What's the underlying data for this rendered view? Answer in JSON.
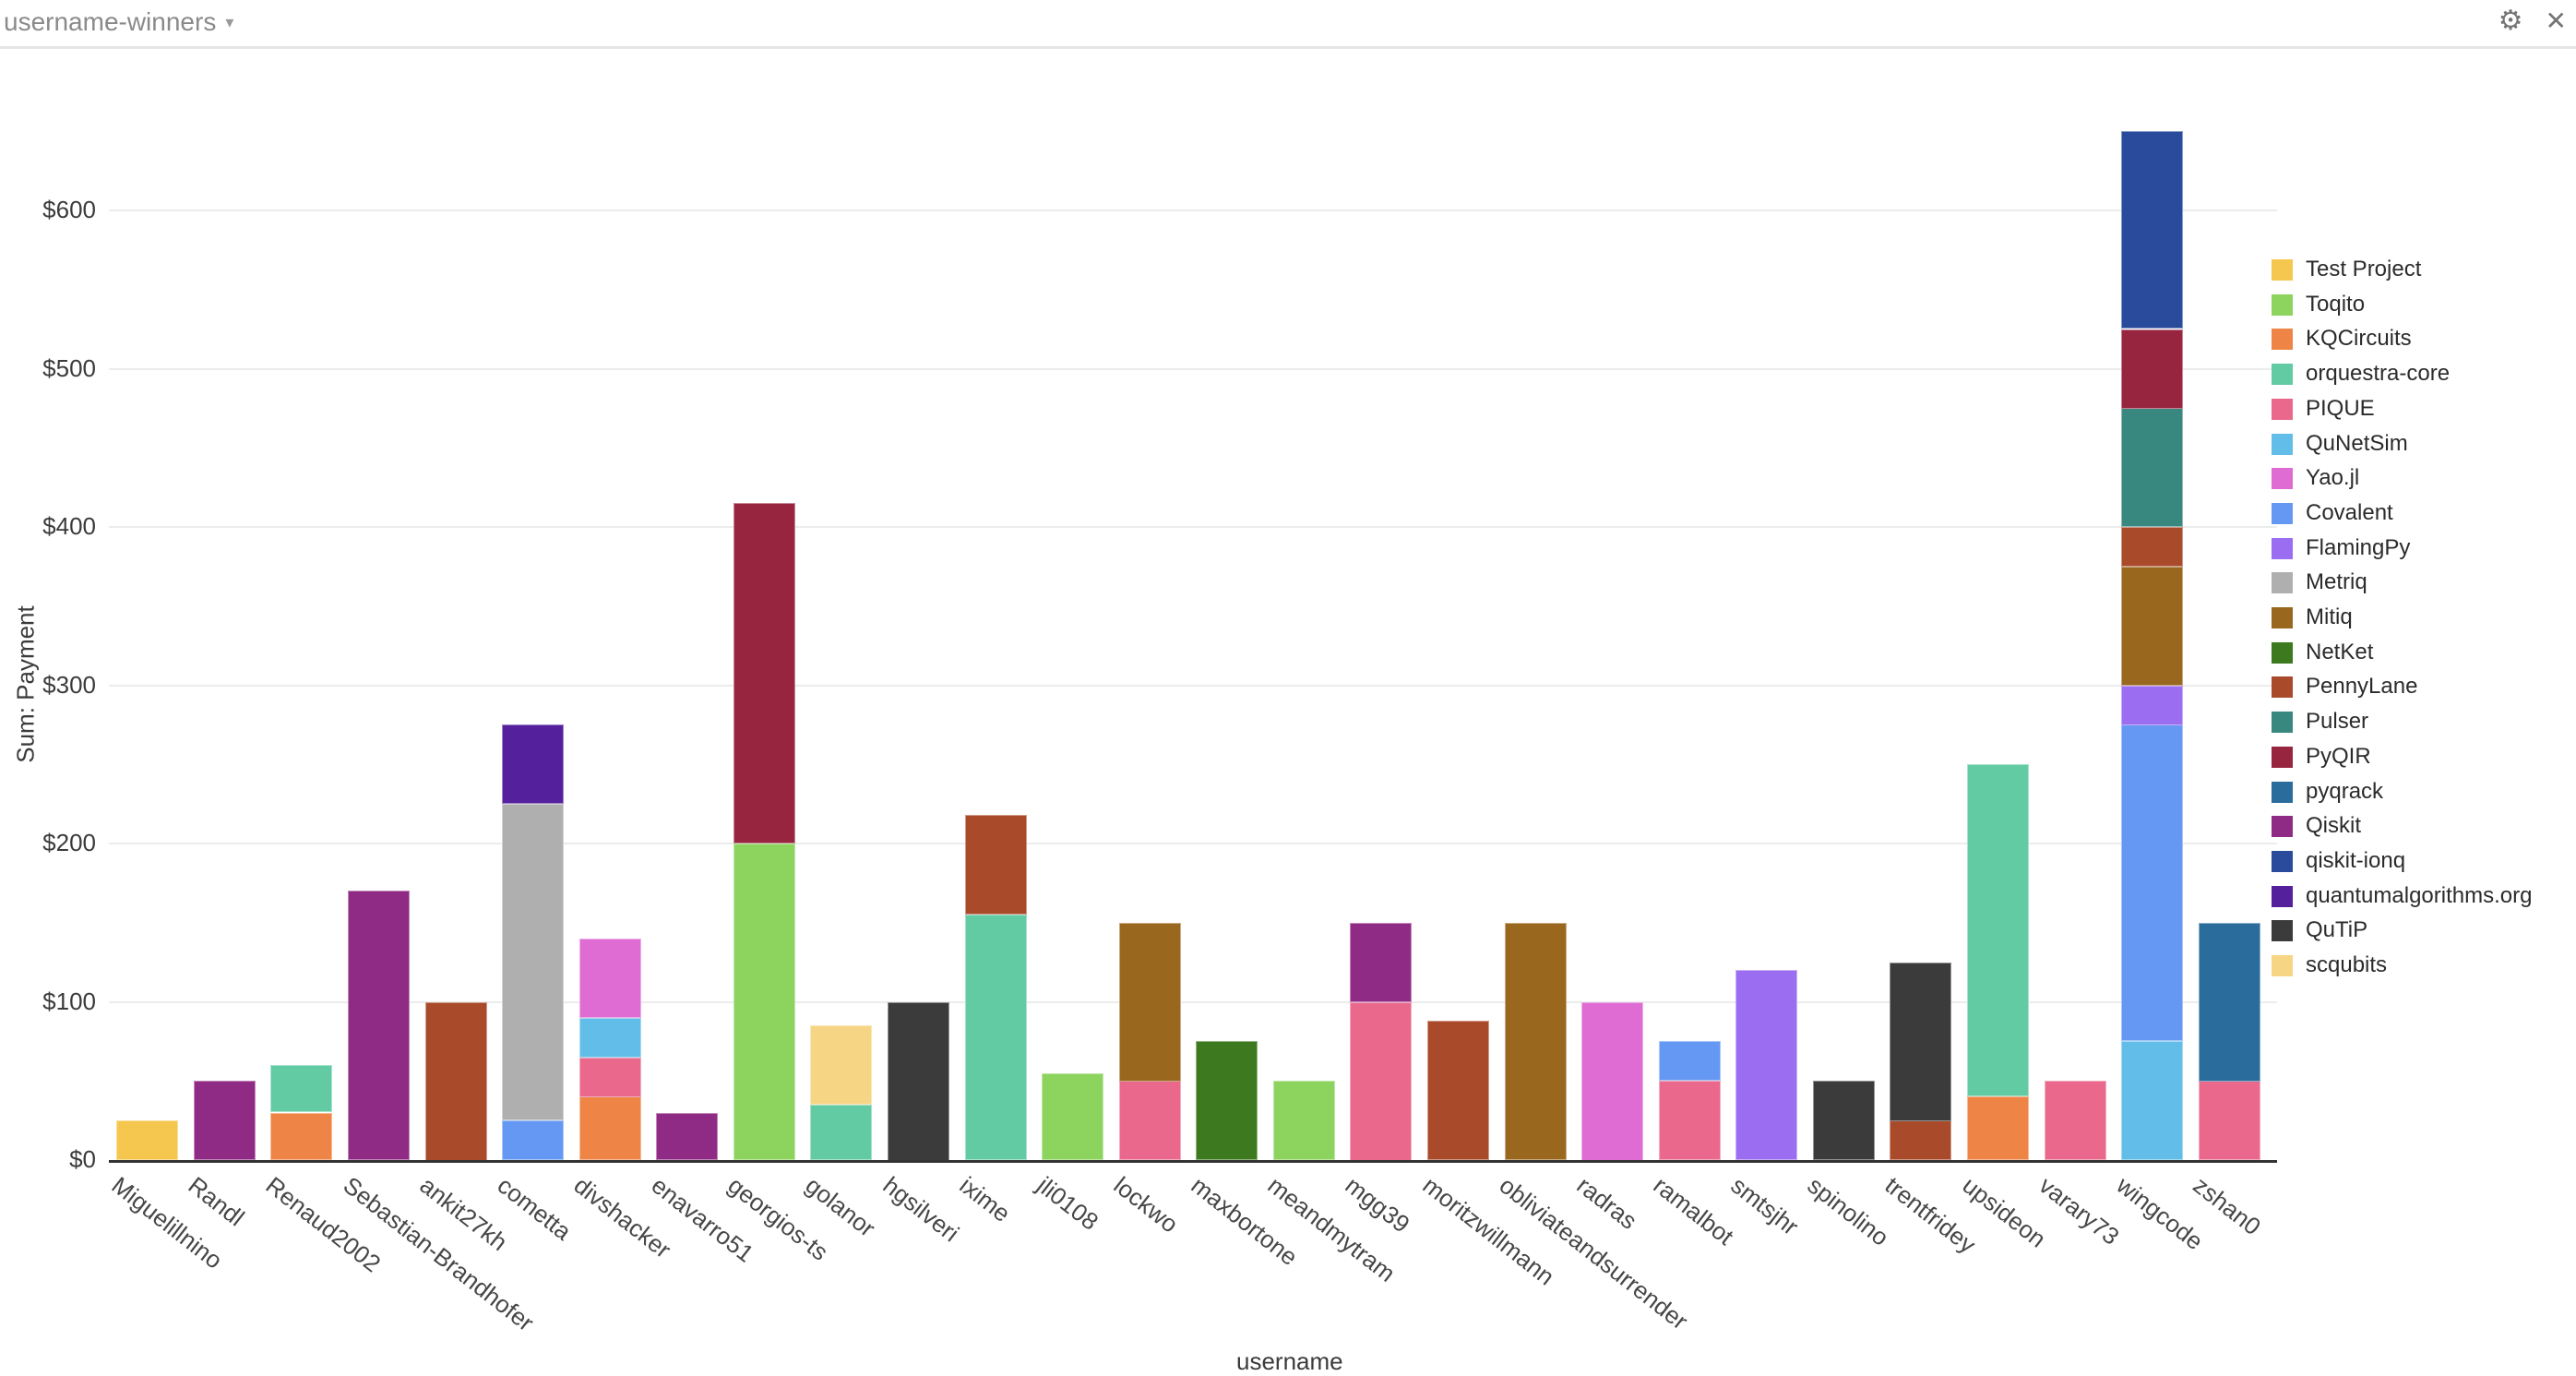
{
  "header": {
    "title": "username-winners",
    "caret": "▾",
    "settings_icon": "⚙",
    "close_icon": "✕"
  },
  "chart_data": {
    "type": "bar",
    "stacked": true,
    "xlabel": "username",
    "ylabel": "Sum: Payment",
    "ylim": [
      0,
      650
    ],
    "ytick_step": 100,
    "yticks": [
      "$0",
      "$100",
      "$200",
      "$300",
      "$400",
      "$500",
      "$600"
    ],
    "grid": true,
    "legend_position": "right",
    "categories": [
      "Miguelillnino",
      "Randl",
      "Renaud2002",
      "Sebastian-Brandhofer",
      "ankit27kh",
      "cometta",
      "divshacker",
      "enavarro51",
      "georgios-ts",
      "golanor",
      "hgsilveri",
      "ixime",
      "jli0108",
      "lockwo",
      "maxbortone",
      "meandmytram",
      "mgg39",
      "moritzwillmann",
      "obliviateandsurrender",
      "radras",
      "ramalbot",
      "smtsjhr",
      "spinolino",
      "trentfridey",
      "upsideon",
      "varary73",
      "wingcode",
      "zshan0"
    ],
    "series": [
      {
        "name": "Test Project",
        "color": "#F6C74F",
        "values": [
          25,
          0,
          0,
          0,
          0,
          0,
          0,
          0,
          0,
          0,
          0,
          0,
          0,
          0,
          0,
          0,
          0,
          0,
          0,
          0,
          0,
          0,
          0,
          0,
          0,
          0,
          0,
          0
        ]
      },
      {
        "name": "Toqito",
        "color": "#8CD45E",
        "values": [
          0,
          0,
          0,
          0,
          0,
          0,
          0,
          0,
          200,
          0,
          0,
          0,
          55,
          0,
          0,
          50,
          0,
          0,
          0,
          0,
          0,
          0,
          0,
          0,
          0,
          0,
          0,
          0
        ]
      },
      {
        "name": "KQCircuits",
        "color": "#EE8445",
        "values": [
          0,
          0,
          30,
          0,
          0,
          0,
          40,
          0,
          0,
          0,
          0,
          0,
          0,
          0,
          0,
          0,
          0,
          0,
          0,
          0,
          0,
          0,
          0,
          0,
          40,
          0,
          0,
          0
        ]
      },
      {
        "name": "orquestra-core",
        "color": "#63CBA4",
        "values": [
          0,
          0,
          30,
          0,
          0,
          0,
          0,
          0,
          0,
          35,
          0,
          155,
          0,
          0,
          0,
          0,
          0,
          0,
          0,
          0,
          0,
          0,
          0,
          0,
          210,
          0,
          0,
          0
        ]
      },
      {
        "name": "PIQUE",
        "color": "#E9688C",
        "values": [
          0,
          0,
          0,
          0,
          0,
          0,
          25,
          0,
          0,
          0,
          0,
          0,
          0,
          50,
          0,
          0,
          100,
          0,
          0,
          0,
          50,
          0,
          0,
          0,
          0,
          50,
          0,
          50
        ]
      },
      {
        "name": "QuNetSim",
        "color": "#62BEE8",
        "values": [
          0,
          0,
          0,
          0,
          0,
          0,
          25,
          0,
          0,
          0,
          0,
          0,
          0,
          0,
          0,
          0,
          0,
          0,
          0,
          0,
          0,
          0,
          0,
          0,
          0,
          0,
          75,
          0
        ]
      },
      {
        "name": "Yao.jl",
        "color": "#DF6CD3",
        "values": [
          0,
          0,
          0,
          0,
          0,
          0,
          50,
          0,
          0,
          0,
          0,
          0,
          0,
          0,
          0,
          0,
          0,
          0,
          0,
          100,
          0,
          0,
          0,
          0,
          0,
          0,
          0,
          0
        ]
      },
      {
        "name": "Covalent",
        "color": "#6498F2",
        "values": [
          0,
          0,
          0,
          0,
          0,
          25,
          0,
          0,
          0,
          0,
          0,
          0,
          0,
          0,
          0,
          0,
          0,
          0,
          0,
          0,
          25,
          0,
          0,
          0,
          0,
          0,
          200,
          0
        ]
      },
      {
        "name": "FlamingPy",
        "color": "#9B6DF1",
        "values": [
          0,
          0,
          0,
          0,
          0,
          0,
          0,
          0,
          0,
          0,
          0,
          0,
          0,
          0,
          0,
          0,
          0,
          0,
          0,
          0,
          0,
          120,
          0,
          0,
          0,
          0,
          25,
          0
        ]
      },
      {
        "name": "Metriq",
        "color": "#AFAFAF",
        "values": [
          0,
          0,
          0,
          0,
          0,
          200,
          0,
          0,
          0,
          0,
          0,
          0,
          0,
          0,
          0,
          0,
          0,
          0,
          0,
          0,
          0,
          0,
          0,
          0,
          0,
          0,
          0,
          0
        ]
      },
      {
        "name": "Mitiq",
        "color": "#99671E",
        "values": [
          0,
          0,
          0,
          0,
          0,
          0,
          0,
          0,
          0,
          0,
          0,
          0,
          0,
          100,
          0,
          0,
          0,
          0,
          150,
          0,
          0,
          0,
          0,
          0,
          0,
          0,
          75,
          0
        ]
      },
      {
        "name": "NetKet",
        "color": "#3D7A1F",
        "values": [
          0,
          0,
          0,
          0,
          0,
          0,
          0,
          0,
          0,
          0,
          0,
          0,
          0,
          0,
          75,
          0,
          0,
          0,
          0,
          0,
          0,
          0,
          0,
          0,
          0,
          0,
          0,
          0
        ]
      },
      {
        "name": "PennyLane",
        "color": "#A94A2B",
        "values": [
          0,
          0,
          0,
          0,
          100,
          0,
          0,
          0,
          0,
          0,
          0,
          63,
          0,
          0,
          0,
          0,
          0,
          88,
          0,
          0,
          0,
          0,
          0,
          25,
          0,
          0,
          25,
          0
        ]
      },
      {
        "name": "Pulser",
        "color": "#398880",
        "values": [
          0,
          0,
          0,
          0,
          0,
          0,
          0,
          0,
          0,
          0,
          0,
          0,
          0,
          0,
          0,
          0,
          0,
          0,
          0,
          0,
          0,
          0,
          0,
          0,
          0,
          0,
          75,
          0
        ]
      },
      {
        "name": "PyQIR",
        "color": "#97253F",
        "values": [
          0,
          0,
          0,
          0,
          0,
          0,
          0,
          0,
          215,
          0,
          0,
          0,
          0,
          0,
          0,
          0,
          0,
          0,
          0,
          0,
          0,
          0,
          0,
          0,
          0,
          0,
          50,
          0
        ]
      },
      {
        "name": "pyqrack",
        "color": "#2A6C9C",
        "values": [
          0,
          0,
          0,
          0,
          0,
          0,
          0,
          0,
          0,
          0,
          0,
          0,
          0,
          0,
          0,
          0,
          0,
          0,
          0,
          0,
          0,
          0,
          0,
          0,
          0,
          0,
          0,
          100
        ]
      },
      {
        "name": "Qiskit",
        "color": "#8F2B84",
        "values": [
          0,
          50,
          0,
          170,
          0,
          0,
          0,
          30,
          0,
          0,
          0,
          0,
          0,
          0,
          0,
          0,
          50,
          0,
          0,
          0,
          0,
          0,
          0,
          0,
          0,
          0,
          0,
          0
        ]
      },
      {
        "name": "qiskit-ionq",
        "color": "#2A4B9B",
        "values": [
          0,
          0,
          0,
          0,
          0,
          0,
          0,
          0,
          0,
          0,
          0,
          0,
          0,
          0,
          0,
          0,
          0,
          0,
          0,
          0,
          0,
          0,
          0,
          0,
          0,
          0,
          125,
          0
        ]
      },
      {
        "name": "quantumalgorithms.org",
        "color": "#55209B",
        "values": [
          0,
          0,
          0,
          0,
          0,
          50,
          0,
          0,
          0,
          0,
          0,
          0,
          0,
          0,
          0,
          0,
          0,
          0,
          0,
          0,
          0,
          0,
          0,
          0,
          0,
          0,
          0,
          0
        ]
      },
      {
        "name": "QuTiP",
        "color": "#3B3B3B",
        "values": [
          0,
          0,
          0,
          0,
          0,
          0,
          0,
          0,
          0,
          0,
          100,
          0,
          0,
          0,
          0,
          0,
          0,
          0,
          0,
          0,
          0,
          0,
          50,
          100,
          0,
          0,
          0,
          0
        ]
      },
      {
        "name": "scqubits",
        "color": "#F6D584",
        "values": [
          0,
          0,
          0,
          0,
          0,
          0,
          0,
          0,
          0,
          50,
          0,
          0,
          0,
          0,
          0,
          0,
          0,
          0,
          0,
          0,
          0,
          0,
          0,
          0,
          0,
          0,
          0,
          0
        ]
      }
    ]
  }
}
